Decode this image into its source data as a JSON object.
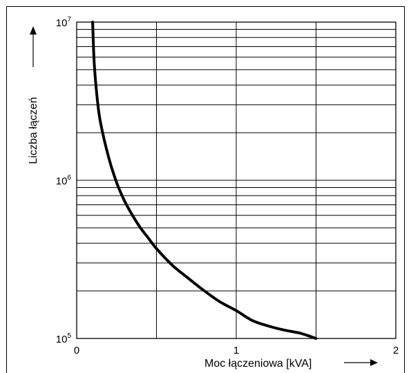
{
  "chart_data": {
    "type": "line",
    "title": "",
    "xlabel": "Moc łączeniowa [kVA]",
    "ylabel": "Liczba łączeń",
    "xlim": [
      0,
      2
    ],
    "ylim": [
      100000,
      10000000
    ],
    "yscale": "log",
    "grid": true,
    "x_ticks": [
      "0",
      "1",
      "2"
    ],
    "y_ticks": [
      {
        "base": "10",
        "exp": "5"
      },
      {
        "base": "10",
        "exp": "6"
      },
      {
        "base": "10",
        "exp": "7"
      }
    ],
    "series": [
      {
        "x": [
          0.1,
          0.11,
          0.13,
          0.15,
          0.2,
          0.25,
          0.3,
          0.35,
          0.4,
          0.45,
          0.5,
          0.6,
          0.7,
          0.8,
          0.9,
          1.0,
          1.1,
          1.2,
          1.3,
          1.4,
          1.5
        ],
        "y": [
          10000000,
          5500000,
          3200000,
          2300000,
          1400000,
          970000,
          740000,
          600000,
          500000,
          430000,
          370000,
          290000,
          240000,
          200000,
          170000,
          150000,
          130000,
          120000,
          113000,
          108000,
          100000
        ]
      }
    ]
  }
}
